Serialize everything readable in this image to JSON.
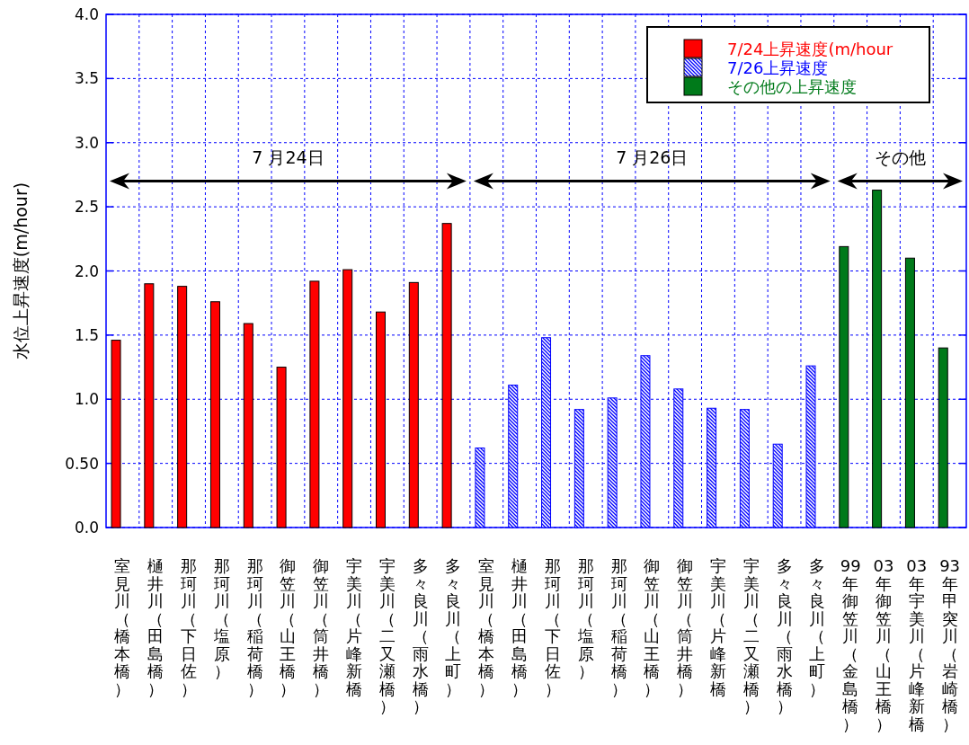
{
  "chart_data": {
    "type": "bar",
    "ylabel": "水位上昇速度(m/hour)",
    "categories": [
      "室見川（橋本橋）",
      "樋井川（田島橋）",
      "那珂川（下日佐）",
      "那珂川（塩原）",
      "那珂川（稲荷橋）",
      "御笠川（山王橋）",
      "御笠川（筒井橋）",
      "宇美川（片峰新橋",
      "宇美川（二又瀬橋）",
      "多々良川（雨水橋）",
      "多々良川（上町）",
      "室見川（橋本橋）",
      "樋井川（田島橋）",
      "那珂川（下日佐）",
      "那珂川（塩原）",
      "那珂川（稲荷橋）",
      "御笠川（山王橋）",
      "御笠川（筒井橋）",
      "宇美川（片峰新橋",
      "宇美川（二又瀬橋）",
      "多々良川（雨水橋）",
      "多々良川（上町）",
      "99年御笠川（金島橋）",
      "03年御笠川（山王橋）",
      "03年宇美川（片峰新橋",
      "93年甲突川（岩崎橋）"
    ],
    "series": [
      {
        "name": "7/24上昇速度(m/hour",
        "color": "#ff0000",
        "values": [
          1.46,
          1.9,
          1.88,
          1.76,
          1.59,
          1.25,
          1.92,
          2.01,
          1.68,
          1.91,
          2.37,
          null,
          null,
          null,
          null,
          null,
          null,
          null,
          null,
          null,
          null,
          null,
          null,
          null,
          null,
          null
        ]
      },
      {
        "name": "7/26上昇速度",
        "color": "#0000ff",
        "values": [
          null,
          null,
          null,
          null,
          null,
          null,
          null,
          null,
          null,
          null,
          null,
          0.62,
          1.11,
          1.48,
          0.92,
          1.01,
          1.34,
          1.08,
          0.93,
          0.92,
          0.65,
          1.26,
          null,
          null,
          null,
          null
        ]
      },
      {
        "name": "その他の上昇速度",
        "color": "#007a1a",
        "values": [
          null,
          null,
          null,
          null,
          null,
          null,
          null,
          null,
          null,
          null,
          null,
          null,
          null,
          null,
          null,
          null,
          null,
          null,
          null,
          null,
          null,
          null,
          2.19,
          2.63,
          2.1,
          1.4
        ]
      }
    ],
    "ylim": [
      0,
      4
    ],
    "yticks": [
      {
        "value": 0,
        "label": "0.0"
      },
      {
        "value": 0.5,
        "label": "0.50"
      },
      {
        "value": 1,
        "label": "1.0"
      },
      {
        "value": 1.5,
        "label": "1.5"
      },
      {
        "value": 2,
        "label": "2.0"
      },
      {
        "value": 2.5,
        "label": "2.5"
      },
      {
        "value": 3,
        "label": "3.0"
      },
      {
        "value": 3.5,
        "label": "3.5"
      },
      {
        "value": 4,
        "label": "4.0"
      }
    ],
    "grid": true,
    "legend": "top right",
    "annotations": [
      "7 月24日",
      "7 月26日",
      "その他"
    ]
  }
}
